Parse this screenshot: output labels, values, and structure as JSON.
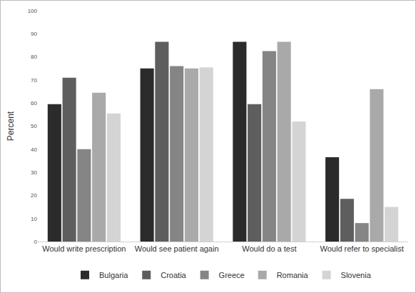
{
  "chart_data": {
    "type": "bar",
    "categories": [
      "Would write prescription",
      "Would see patient again",
      "Would do a test",
      "Would refer to specialist"
    ],
    "series": [
      {
        "name": "Bulgaria",
        "color": "#2b2b2b",
        "values": [
          59.5,
          75,
          86.5,
          36.5
        ]
      },
      {
        "name": "Croatia",
        "color": "#5e5e5e",
        "values": [
          71,
          86.5,
          59.5,
          18.5
        ]
      },
      {
        "name": "Greece",
        "color": "#858585",
        "values": [
          40,
          76,
          82.5,
          8
        ]
      },
      {
        "name": "Romania",
        "color": "#a9a9a9",
        "values": [
          64.5,
          75,
          86.5,
          66
        ]
      },
      {
        "name": "Slovenia",
        "color": "#d4d4d4",
        "values": [
          55.5,
          75.5,
          52,
          15
        ]
      }
    ],
    "y_label": "Percent",
    "ylim": [
      0,
      100
    ],
    "yticks": [
      0,
      10,
      20,
      30,
      40,
      50,
      60,
      70,
      80,
      90,
      100
    ],
    "grid": false,
    "legend": "bottom"
  }
}
